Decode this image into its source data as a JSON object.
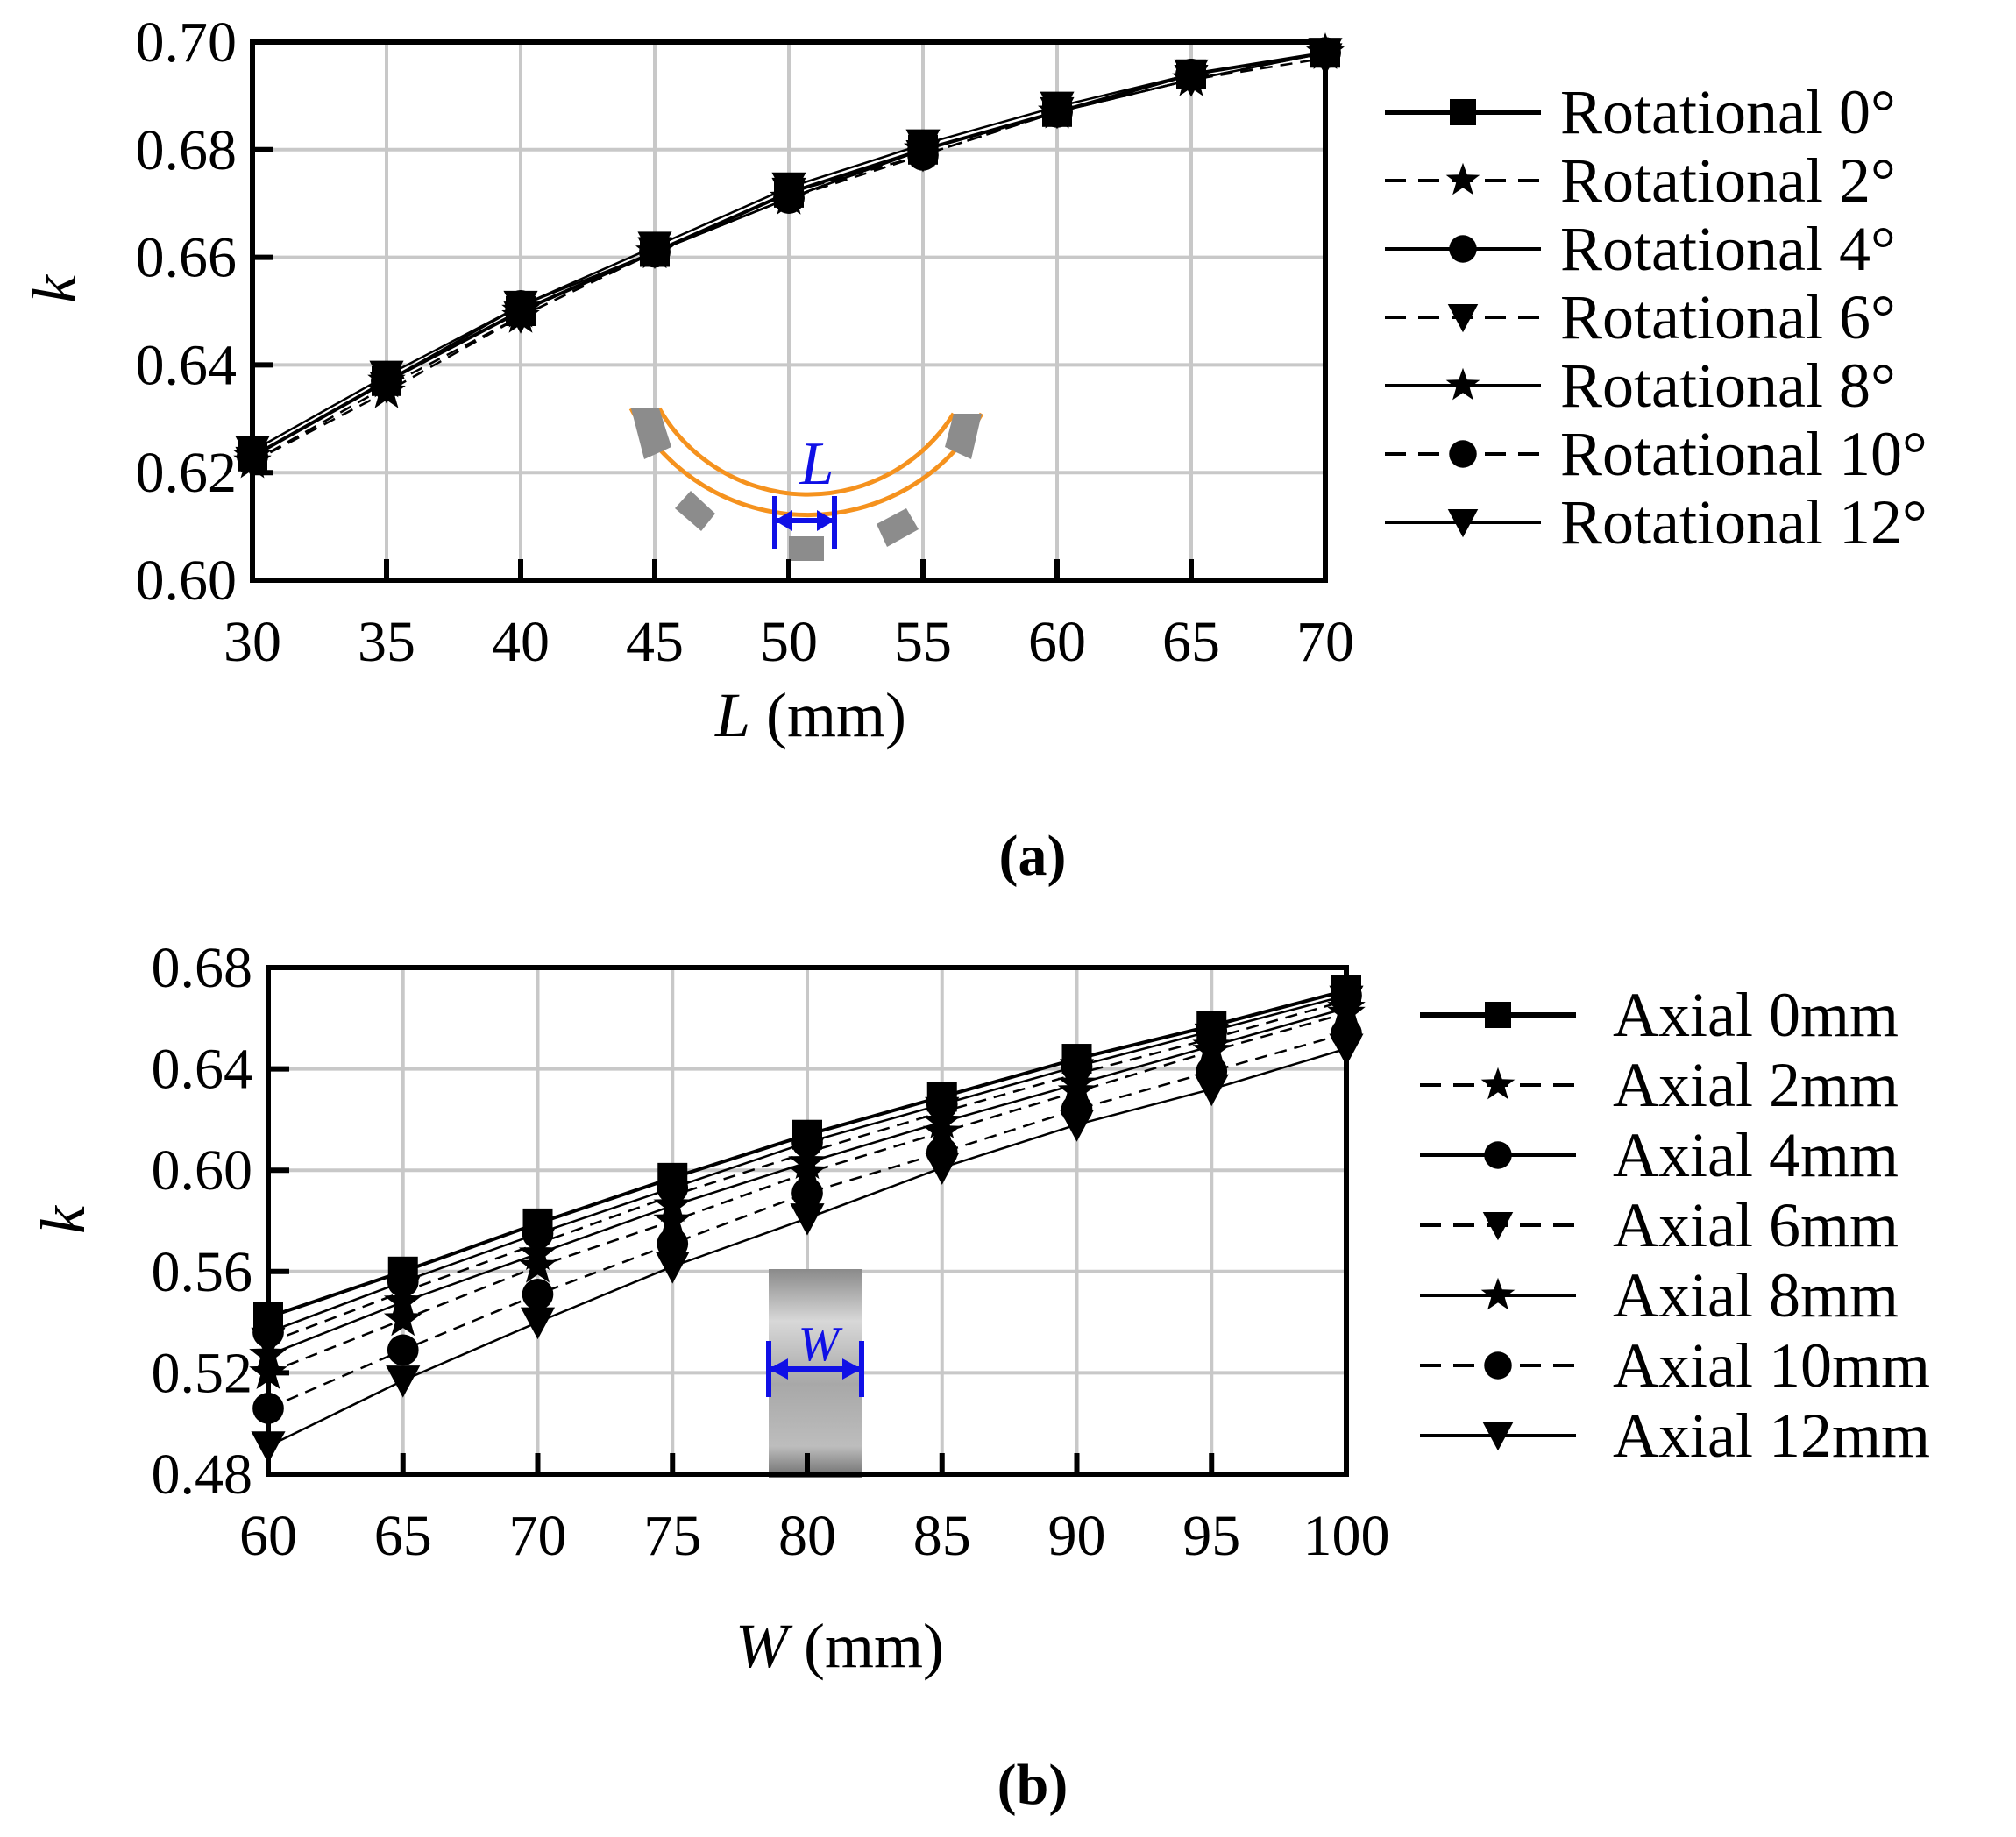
{
  "chart_data": [
    {
      "id": "a",
      "type": "line",
      "caption": "(a)",
      "xlabel": {
        "symbol": "L",
        "unit": " (mm)"
      },
      "ylabel": "k",
      "xlim": [
        30,
        70
      ],
      "ylim": [
        0.6,
        0.7
      ],
      "xticks": [
        "30",
        "35",
        "40",
        "45",
        "50",
        "55",
        "60",
        "65",
        "70"
      ],
      "yticks": [
        "0.60",
        "0.62",
        "0.64",
        "0.66",
        "0.68",
        "0.70"
      ],
      "grid": true,
      "legend_position": "right",
      "x": [
        30,
        35,
        40,
        45,
        50,
        55,
        60,
        65,
        70
      ],
      "series": [
        {
          "name": "Rotational 0°",
          "marker": "square",
          "dash": "solid",
          "values": [
            0.623,
            0.637,
            0.65,
            0.661,
            0.672,
            0.68,
            0.687,
            0.694,
            0.698
          ]
        },
        {
          "name": "Rotational 2°",
          "marker": "star",
          "dash": "dashed",
          "values": [
            0.622,
            0.635,
            0.649,
            0.661,
            0.671,
            0.68,
            0.687,
            0.693,
            0.698
          ]
        },
        {
          "name": "Rotational 4°",
          "marker": "circle",
          "dash": "solid",
          "values": [
            0.623,
            0.637,
            0.651,
            0.661,
            0.671,
            0.68,
            0.687,
            0.694,
            0.698
          ]
        },
        {
          "name": "Rotational 6°",
          "marker": "triangle",
          "dash": "dashed",
          "values": [
            0.622,
            0.636,
            0.649,
            0.661,
            0.672,
            0.679,
            0.687,
            0.693,
            0.697
          ]
        },
        {
          "name": "Rotational 8°",
          "marker": "star",
          "dash": "solid",
          "values": [
            0.623,
            0.637,
            0.65,
            0.661,
            0.671,
            0.68,
            0.687,
            0.693,
            0.698
          ]
        },
        {
          "name": "Rotational 10°",
          "marker": "circle",
          "dash": "dashed",
          "values": [
            0.623,
            0.637,
            0.65,
            0.661,
            0.671,
            0.679,
            0.687,
            0.694,
            0.698
          ]
        },
        {
          "name": "Rotational 12°",
          "marker": "triangle",
          "dash": "solid",
          "values": [
            0.624,
            0.638,
            0.651,
            0.662,
            0.673,
            0.681,
            0.688,
            0.694,
            0.698
          ]
        }
      ],
      "inset": {
        "label": "L",
        "description": "arc segment spacing"
      }
    },
    {
      "id": "b",
      "type": "line",
      "caption": "(b)",
      "xlabel": {
        "symbol": "W",
        "unit": " (mm)"
      },
      "ylabel": "k",
      "xlim": [
        60,
        100
      ],
      "ylim": [
        0.48,
        0.68
      ],
      "xticks": [
        "60",
        "65",
        "70",
        "75",
        "80",
        "85",
        "90",
        "95",
        "100"
      ],
      "yticks": [
        "0.48",
        "0.52",
        "0.56",
        "0.60",
        "0.64",
        "0.68"
      ],
      "grid": true,
      "legend_position": "right",
      "x": [
        60,
        65,
        70,
        75,
        80,
        85,
        90,
        95,
        100
      ],
      "series": [
        {
          "name": "Axial 0mm",
          "marker": "square",
          "dash": "solid",
          "values": [
            0.542,
            0.56,
            0.579,
            0.597,
            0.614,
            0.629,
            0.644,
            0.657,
            0.671
          ]
        },
        {
          "name": "Axial 2mm",
          "marker": "star",
          "dash": "dashed",
          "values": [
            0.52,
            0.541,
            0.562,
            0.58,
            0.599,
            0.615,
            0.631,
            0.647,
            0.662
          ]
        },
        {
          "name": "Axial 4mm",
          "marker": "circle",
          "dash": "solid",
          "values": [
            0.536,
            0.556,
            0.575,
            0.593,
            0.611,
            0.626,
            0.641,
            0.655,
            0.669
          ]
        },
        {
          "name": "Axial 6mm",
          "marker": "triangle",
          "dash": "dashed",
          "values": [
            0.532,
            0.552,
            0.571,
            0.59,
            0.607,
            0.623,
            0.638,
            0.652,
            0.667
          ]
        },
        {
          "name": "Axial 8mm",
          "marker": "star",
          "dash": "solid",
          "values": [
            0.527,
            0.548,
            0.567,
            0.586,
            0.603,
            0.619,
            0.634,
            0.649,
            0.664
          ]
        },
        {
          "name": "Axial 10mm",
          "marker": "circle",
          "dash": "dashed",
          "values": [
            0.506,
            0.529,
            0.551,
            0.571,
            0.591,
            0.607,
            0.624,
            0.639,
            0.654
          ]
        },
        {
          "name": "Axial 12mm",
          "marker": "triangle",
          "dash": "solid",
          "values": [
            0.491,
            0.517,
            0.54,
            0.562,
            0.581,
            0.601,
            0.618,
            0.632,
            0.648
          ]
        }
      ],
      "inset": {
        "label": "W",
        "description": "ring width"
      }
    }
  ],
  "colors": {
    "axis": "#000000",
    "grid": "#c8c8c8",
    "inset_orange": "#f5921e",
    "inset_gray": "#8c8c8c",
    "dimension_blue": "#1010e6"
  }
}
